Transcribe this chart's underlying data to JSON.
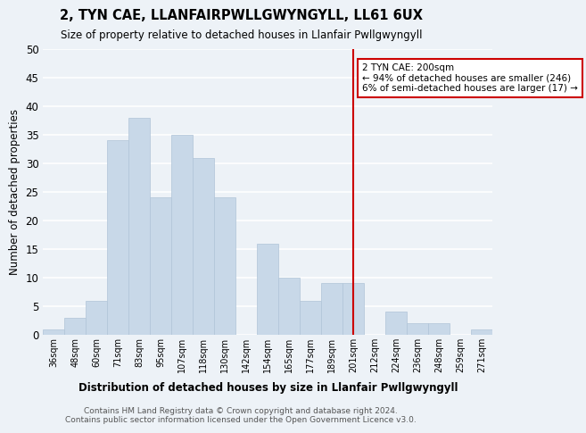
{
  "title": "2, TYN CAE, LLANFAIRPWLLGWYNGYLL, LL61 6UX",
  "subtitle": "Size of property relative to detached houses in Llanfair Pwllgwyngyll",
  "xlabel": "Distribution of detached houses by size in Llanfair Pwllgwyngyll",
  "ylabel": "Number of detached properties",
  "footer_line1": "Contains HM Land Registry data © Crown copyright and database right 2024.",
  "footer_line2": "Contains public sector information licensed under the Open Government Licence v3.0.",
  "bar_labels": [
    "36sqm",
    "48sqm",
    "60sqm",
    "71sqm",
    "83sqm",
    "95sqm",
    "107sqm",
    "118sqm",
    "130sqm",
    "142sqm",
    "154sqm",
    "165sqm",
    "177sqm",
    "189sqm",
    "201sqm",
    "212sqm",
    "224sqm",
    "236sqm",
    "248sqm",
    "259sqm",
    "271sqm"
  ],
  "bar_values": [
    1,
    3,
    6,
    34,
    38,
    24,
    35,
    31,
    24,
    0,
    16,
    10,
    6,
    9,
    9,
    0,
    4,
    2,
    2,
    0,
    1
  ],
  "bar_color": "#c8d8e8",
  "bar_edge_color": "#b0c4d8",
  "annotation_title": "2 TYN CAE: 200sqm",
  "annotation_line1": "← 94% of detached houses are smaller (246)",
  "annotation_line2": "6% of semi-detached houses are larger (17) →",
  "vline_x_index": 14,
  "vline_color": "#cc0000",
  "ylim": [
    0,
    50
  ],
  "yticks": [
    0,
    5,
    10,
    15,
    20,
    25,
    30,
    35,
    40,
    45,
    50
  ],
  "bg_color": "#edf2f7",
  "grid_color": "#ffffff",
  "annotation_box_facecolor": "#ffffff",
  "annotation_box_edgecolor": "#cc0000"
}
